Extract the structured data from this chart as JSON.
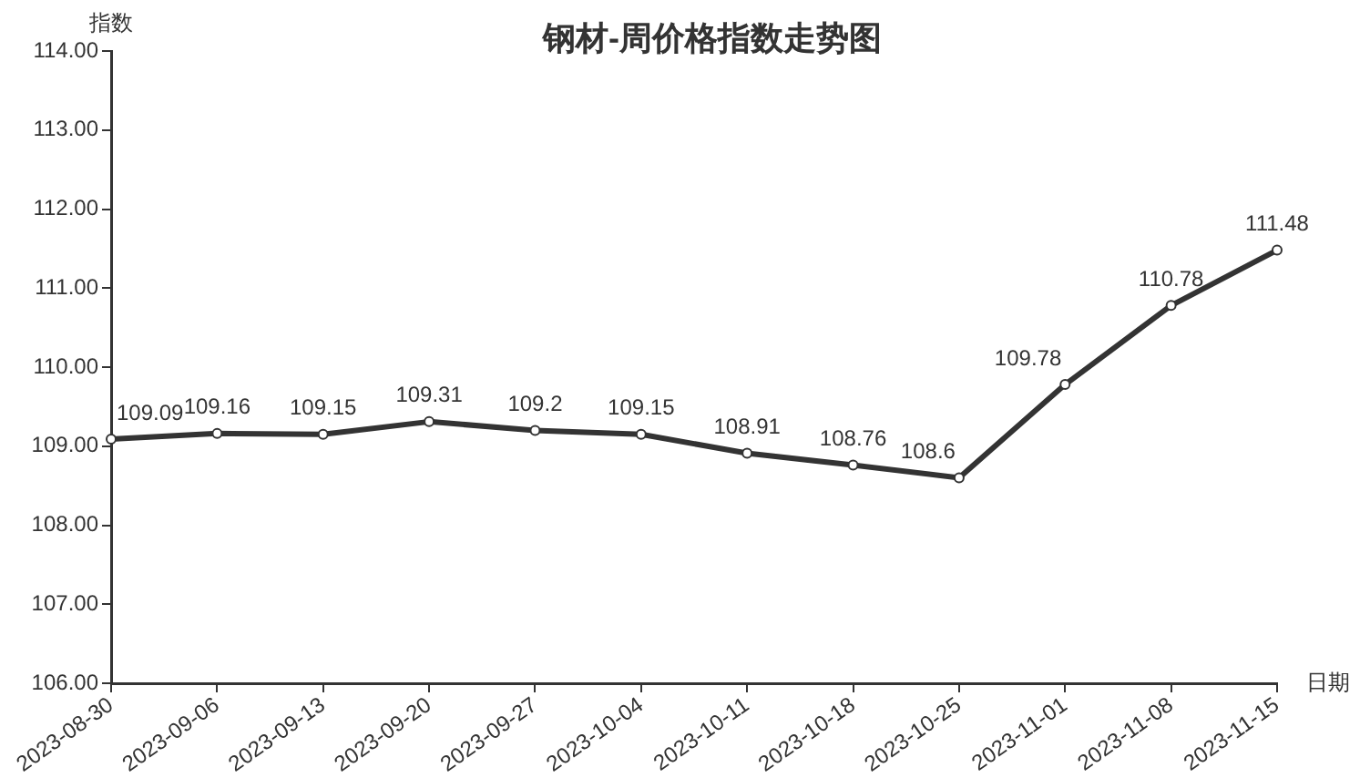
{
  "chart_data": {
    "type": "line",
    "title": "钢材-周价格指数走势图",
    "ylabel": "指数",
    "xlabel": "日期",
    "categories": [
      "2023-08-30",
      "2023-09-06",
      "2023-09-13",
      "2023-09-20",
      "2023-09-27",
      "2023-10-04",
      "2023-10-11",
      "2023-10-18",
      "2023-10-25",
      "2023-11-01",
      "2023-11-08",
      "2023-11-15"
    ],
    "values": [
      109.09,
      109.16,
      109.15,
      109.31,
      109.2,
      109.15,
      108.91,
      108.76,
      108.6,
      109.78,
      110.78,
      111.48
    ],
    "color": "#333333",
    "ylim": [
      106,
      114
    ],
    "yticks": [
      {
        "value": 106,
        "label": "106.00"
      },
      {
        "value": 107,
        "label": "107.00"
      },
      {
        "value": 108,
        "label": "108.00"
      },
      {
        "value": 109,
        "label": "109.00"
      },
      {
        "value": 110,
        "label": "110.00"
      },
      {
        "value": 111,
        "label": "111.00"
      },
      {
        "value": 112,
        "label": "112.00"
      },
      {
        "value": 113,
        "label": "113.00"
      },
      {
        "value": 114,
        "label": "114.00"
      }
    ],
    "data_labels": true,
    "marker": "circle",
    "line_style": "solid"
  }
}
